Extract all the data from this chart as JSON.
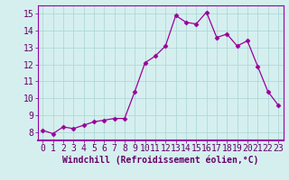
{
  "x": [
    0,
    1,
    2,
    3,
    4,
    5,
    6,
    7,
    8,
    9,
    10,
    11,
    12,
    13,
    14,
    15,
    16,
    17,
    18,
    19,
    20,
    21,
    22,
    23
  ],
  "y": [
    8.1,
    7.9,
    8.3,
    8.2,
    8.4,
    8.6,
    8.7,
    8.8,
    8.8,
    10.4,
    12.1,
    12.5,
    13.1,
    14.9,
    14.5,
    14.4,
    15.1,
    13.6,
    13.8,
    13.1,
    13.4,
    11.9,
    10.4,
    9.6
  ],
  "line_color": "#990099",
  "marker": "D",
  "marker_size": 2.5,
  "xlabel": "Windchill (Refroidissement éolien,°C)",
  "xlim": [
    -0.5,
    23.5
  ],
  "ylim": [
    7.5,
    15.5
  ],
  "yticks": [
    8,
    9,
    10,
    11,
    12,
    13,
    14,
    15
  ],
  "xticks": [
    0,
    1,
    2,
    3,
    4,
    5,
    6,
    7,
    8,
    9,
    10,
    11,
    12,
    13,
    14,
    15,
    16,
    17,
    18,
    19,
    20,
    21,
    22,
    23
  ],
  "xtick_labels": [
    "0",
    "1",
    "2",
    "3",
    "4",
    "5",
    "6",
    "7",
    "8",
    "9",
    "10",
    "11",
    "12",
    "13",
    "14",
    "15",
    "16",
    "17",
    "18",
    "19",
    "20",
    "21",
    "22",
    "23"
  ],
  "background_color": "#d5efef",
  "grid_color": "#b0d8d8",
  "xlabel_fontsize": 7,
  "tick_fontsize": 7
}
